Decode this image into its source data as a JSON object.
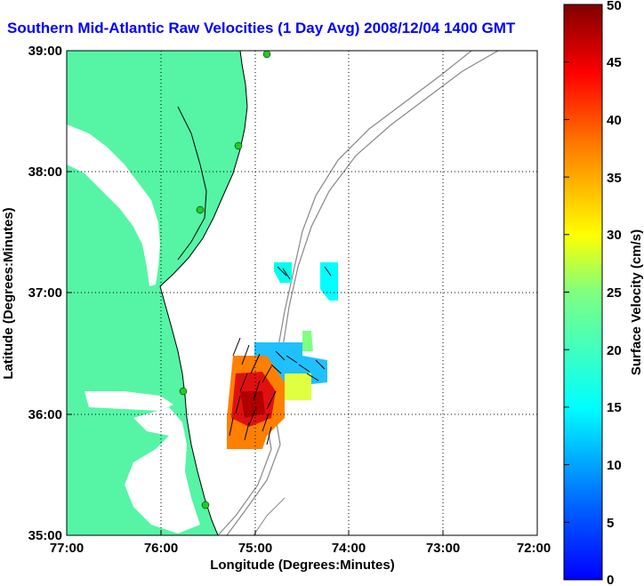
{
  "title": "Southern Mid-Atlantic Raw Velocities (1 Day Avg) 2008/12/04 1400 GMT",
  "x_axis": {
    "label": "Longitude (Degrees:Minutes)",
    "ticks": [
      "77:00",
      "76:00",
      "75:00",
      "74:00",
      "73:00",
      "72:00"
    ]
  },
  "y_axis": {
    "label": "Latitude (Degrees:Minutes)",
    "ticks": [
      "39:00",
      "38:00",
      "37:00",
      "36:00",
      "35:00"
    ]
  },
  "colorbar": {
    "label": "Surface Velocity (cm/s)",
    "ticks": [
      "50",
      "45",
      "40",
      "35",
      "30",
      "25",
      "20",
      "15",
      "10",
      "5",
      "0"
    ],
    "min": 0,
    "max": 50
  },
  "colors": {
    "land": "#55f5a5",
    "title": "#0000ff",
    "bathymetry": "#888888",
    "site_marker": "#22cc22"
  },
  "chart_data": {
    "type": "heatmap",
    "title": "Southern Mid-Atlantic Raw Velocities (1 Day Avg) 2008/12/04 1400 GMT",
    "xlabel": "Longitude (Degrees:Minutes)",
    "ylabel": "Latitude (Degrees:Minutes)",
    "xlim": [
      -77,
      -72
    ],
    "ylim": [
      35,
      39
    ],
    "grid": true,
    "colorbar_label": "Surface Velocity (cm/s)",
    "colorbar_range": [
      0,
      50
    ]
  }
}
